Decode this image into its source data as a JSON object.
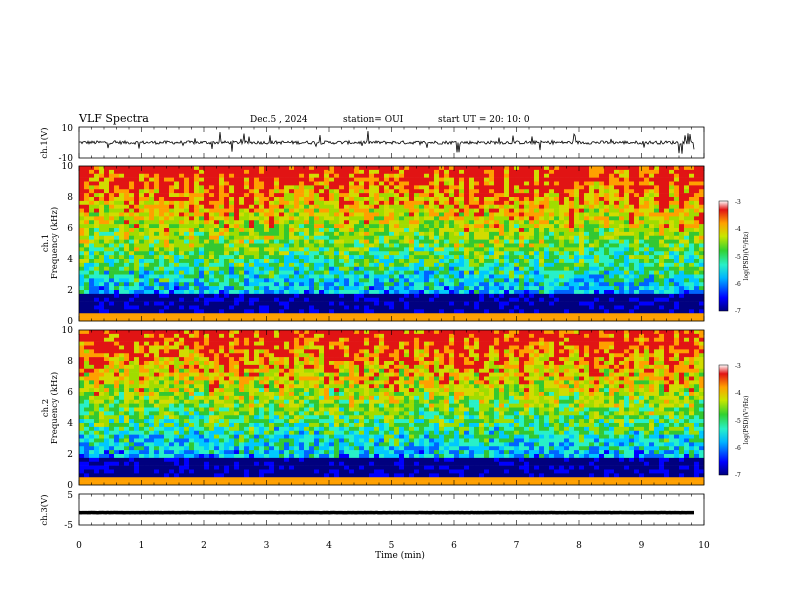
{
  "header": {
    "title": "VLF Spectra",
    "date": "Dec.5 , 2024",
    "station": "station= OUI",
    "start": "start UT = 20: 10: 0"
  },
  "chart_data": [
    {
      "type": "line",
      "name": "ch1-waveform",
      "ylabel": "ch.1(V)",
      "yticks": [
        "10",
        "-10"
      ],
      "ylim": [
        -10,
        10
      ],
      "xlim": [
        0,
        10
      ],
      "approx_level": 0,
      "trace_extent_min": 9.85
    },
    {
      "type": "heatmap",
      "name": "ch1-spectrogram",
      "ylabel": "ch.1 Frequency (kHz)",
      "ylabel_line1": "ch.1",
      "ylabel_line2": "Frequency (kHz)",
      "yticks": [
        "0",
        "2",
        "4",
        "6",
        "8",
        "10"
      ],
      "ylim": [
        0,
        10
      ],
      "xlim": [
        0,
        10
      ],
      "colorbar": {
        "label": "log(PSD)(V²/Hz)",
        "ticks": [
          "-3",
          "-4",
          "-5",
          "-6",
          "-7"
        ],
        "range": [
          -7,
          -3
        ]
      },
      "colors": [
        "#00007f",
        "#0000ff",
        "#00c8ff",
        "#28f0c8",
        "#32c832",
        "#d2dc00",
        "#ffa000",
        "#e11414"
      ]
    },
    {
      "type": "heatmap",
      "name": "ch2-spectrogram",
      "ylabel": "ch.2 Frequency (kHz)",
      "ylabel_line1": "ch.2",
      "ylabel_line2": "Frequency (kHz)",
      "yticks": [
        "0",
        "2",
        "4",
        "6",
        "8",
        "10"
      ],
      "ylim": [
        0,
        10
      ],
      "xlim": [
        0,
        10
      ],
      "colorbar": {
        "label": "log(PSD)(V²/Hz)",
        "ticks": [
          "-3",
          "-4",
          "-5",
          "-6",
          "-7"
        ],
        "range": [
          -7,
          -3
        ]
      }
    },
    {
      "type": "line",
      "name": "ch3-waveform",
      "ylabel": "ch.3(V)",
      "yticks": [
        "5",
        "-5"
      ],
      "ylim": [
        -5,
        5
      ],
      "xlim": [
        0,
        10
      ],
      "approx_level": -1,
      "trace_extent_min": 9.85
    }
  ],
  "xaxis": {
    "label": "Time (min)",
    "ticks": [
      "0",
      "1",
      "2",
      "3",
      "4",
      "5",
      "6",
      "7",
      "8",
      "9",
      "10"
    ],
    "range": [
      0,
      10
    ]
  }
}
